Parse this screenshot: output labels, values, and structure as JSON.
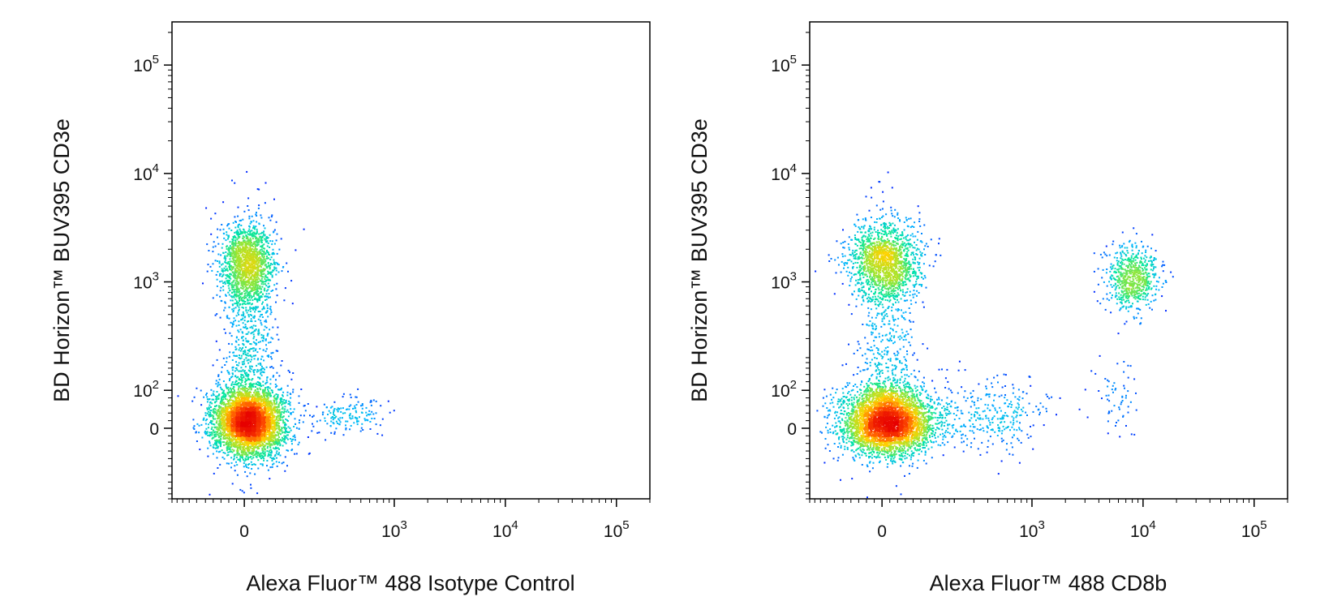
{
  "chart_data": [
    {
      "type": "scatter",
      "xlabel": "Alexa Fluor™ 488 Isotype Control",
      "ylabel": "BD Horizon™ BUV395 CD3e",
      "x_scale": "biexponential",
      "y_scale": "biexponential",
      "xlim": [
        -200,
        200000
      ],
      "ylim": [
        -200,
        250000
      ],
      "x_ticks": [
        {
          "value": 0,
          "base": "0",
          "exp": ""
        },
        {
          "value": 1000,
          "base": "10",
          "exp": "3"
        },
        {
          "value": 10000,
          "base": "10",
          "exp": "4"
        },
        {
          "value": 100000,
          "base": "10",
          "exp": "5"
        }
      ],
      "y_ticks": [
        {
          "value": 0,
          "base": "0",
          "exp": ""
        },
        {
          "value": 100,
          "base": "10",
          "exp": "2"
        },
        {
          "value": 1000,
          "base": "10",
          "exp": "3"
        },
        {
          "value": 10000,
          "base": "10",
          "exp": "4"
        },
        {
          "value": 100000,
          "base": "10",
          "exp": "5"
        }
      ],
      "populations": [
        {
          "x": 10,
          "y": 20,
          "sx": 0.16,
          "sy": 0.16,
          "count": 4200
        },
        {
          "x": 5,
          "y": 1500,
          "sx": 0.12,
          "sy": 0.19,
          "count": 1500
        },
        {
          "x": 8,
          "y": 250,
          "sx": 0.13,
          "sy": 0.52,
          "count": 700
        },
        {
          "x": 350,
          "y": 35,
          "sx": 0.16,
          "sy": 0.08,
          "count": 160
        }
      ],
      "color_scale": [
        "#0000ff",
        "#00b4ff",
        "#00e6a0",
        "#9be632",
        "#ffd200",
        "#ff5000",
        "#e60000"
      ]
    },
    {
      "type": "scatter",
      "xlabel": "Alexa Fluor™ 488 CD8b",
      "ylabel": "BD Horizon™ BUV395 CD3e",
      "x_scale": "biexponential",
      "y_scale": "biexponential",
      "xlim": [
        -200,
        200000
      ],
      "ylim": [
        -200,
        250000
      ],
      "x_ticks": [
        {
          "value": 0,
          "base": "0",
          "exp": ""
        },
        {
          "value": 1000,
          "base": "10",
          "exp": "3"
        },
        {
          "value": 10000,
          "base": "10",
          "exp": "4"
        },
        {
          "value": 100000,
          "base": "10",
          "exp": "5"
        }
      ],
      "y_ticks": [
        {
          "value": 0,
          "base": "0",
          "exp": ""
        },
        {
          "value": 100,
          "base": "10",
          "exp": "2"
        },
        {
          "value": 1000,
          "base": "10",
          "exp": "3"
        },
        {
          "value": 10000,
          "base": "10",
          "exp": "4"
        },
        {
          "value": 100000,
          "base": "10",
          "exp": "5"
        }
      ],
      "populations": [
        {
          "x": 12,
          "y": 20,
          "sx": 0.2,
          "sy": 0.15,
          "count": 4000
        },
        {
          "x": 5,
          "y": 1600,
          "sx": 0.16,
          "sy": 0.18,
          "count": 1500
        },
        {
          "x": 8000,
          "y": 1100,
          "sx": 0.12,
          "sy": 0.15,
          "count": 700
        },
        {
          "x": 10,
          "y": 250,
          "sx": 0.15,
          "sy": 0.55,
          "count": 600
        },
        {
          "x": 400,
          "y": 40,
          "sx": 0.3,
          "sy": 0.18,
          "count": 350
        },
        {
          "x": 6000,
          "y": 90,
          "sx": 0.1,
          "sy": 0.2,
          "count": 60
        }
      ],
      "color_scale": [
        "#0000ff",
        "#00b4ff",
        "#00e6a0",
        "#9be632",
        "#ffd200",
        "#ff5000",
        "#e60000"
      ]
    }
  ]
}
